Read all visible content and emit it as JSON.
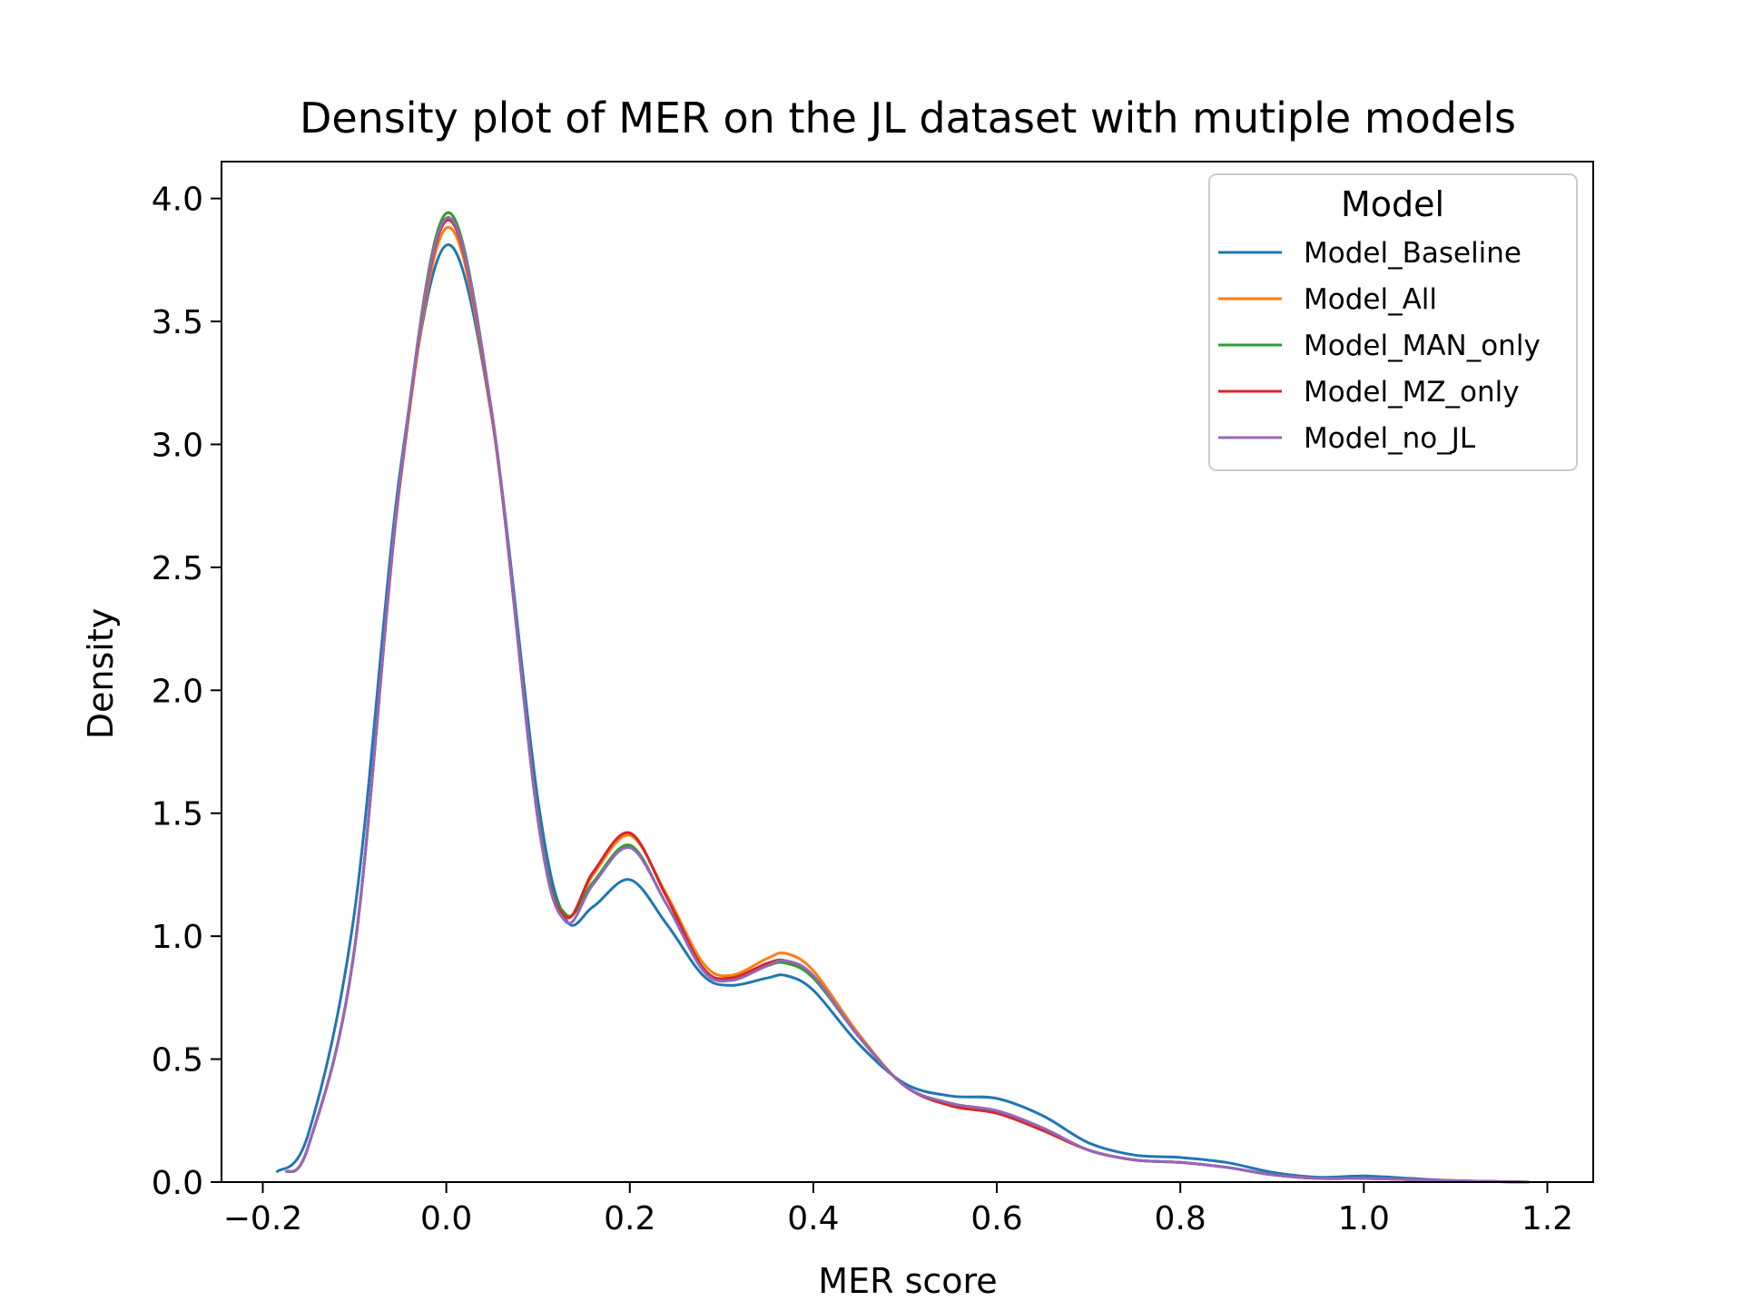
{
  "chart_data": {
    "type": "line",
    "title": "Density plot of MER on the JL dataset with mutiple models",
    "xlabel": "MER score",
    "ylabel": "Density",
    "xlim": [
      -0.245,
      1.25
    ],
    "ylim": [
      0.0,
      4.15
    ],
    "xticks": [
      -0.2,
      0.0,
      0.2,
      0.4,
      0.6,
      0.8,
      1.0,
      1.2
    ],
    "xtick_labels": [
      "−0.2",
      "0.0",
      "0.2",
      "0.4",
      "0.6",
      "0.8",
      "1.0",
      "1.2"
    ],
    "yticks": [
      0.0,
      0.5,
      1.0,
      1.5,
      2.0,
      2.5,
      3.0,
      3.5,
      4.0
    ],
    "ytick_labels": [
      "0.0",
      "0.5",
      "1.0",
      "1.5",
      "2.0",
      "2.5",
      "3.0",
      "3.5",
      "4.0"
    ],
    "grid": false,
    "legend": {
      "title": "Model",
      "placement": "upper right"
    },
    "series": [
      {
        "name": "Model_Baseline",
        "color": "#1f77b4",
        "x": [
          -0.185,
          -0.15,
          -0.1,
          -0.05,
          0.0,
          0.05,
          0.1,
          0.13,
          0.16,
          0.2,
          0.24,
          0.28,
          0.31,
          0.35,
          0.37,
          0.4,
          0.45,
          0.5,
          0.55,
          0.6,
          0.65,
          0.7,
          0.75,
          0.8,
          0.85,
          0.9,
          0.95,
          1.0,
          1.05,
          1.1,
          1.18
        ],
        "y": [
          0.04,
          0.2,
          1.1,
          2.9,
          3.81,
          3.1,
          1.55,
          1.07,
          1.12,
          1.23,
          1.05,
          0.84,
          0.8,
          0.83,
          0.84,
          0.78,
          0.56,
          0.4,
          0.35,
          0.34,
          0.27,
          0.16,
          0.11,
          0.1,
          0.08,
          0.04,
          0.02,
          0.025,
          0.015,
          0.006,
          0.0
        ]
      },
      {
        "name": "Model_All",
        "color": "#ff7f0e",
        "x": [
          -0.175,
          -0.15,
          -0.1,
          -0.05,
          0.0,
          0.05,
          0.1,
          0.13,
          0.16,
          0.2,
          0.24,
          0.28,
          0.31,
          0.35,
          0.37,
          0.4,
          0.45,
          0.5,
          0.55,
          0.6,
          0.65,
          0.7,
          0.75,
          0.8,
          0.85,
          0.9,
          0.95,
          1.0,
          1.05,
          1.1,
          1.18
        ],
        "y": [
          0.04,
          0.15,
          0.95,
          2.85,
          3.88,
          3.1,
          1.48,
          1.08,
          1.25,
          1.41,
          1.17,
          0.89,
          0.84,
          0.91,
          0.93,
          0.86,
          0.6,
          0.39,
          0.32,
          0.29,
          0.22,
          0.13,
          0.09,
          0.08,
          0.06,
          0.03,
          0.015,
          0.015,
          0.01,
          0.005,
          0.0
        ]
      },
      {
        "name": "Model_MAN_only",
        "color": "#2ca02c",
        "x": [
          -0.175,
          -0.15,
          -0.1,
          -0.05,
          0.0,
          0.05,
          0.1,
          0.13,
          0.16,
          0.2,
          0.24,
          0.28,
          0.31,
          0.35,
          0.37,
          0.4,
          0.45,
          0.5,
          0.55,
          0.6,
          0.65,
          0.7,
          0.75,
          0.8,
          0.85,
          0.9,
          0.95,
          1.0,
          1.05,
          1.1,
          1.18
        ],
        "y": [
          0.04,
          0.15,
          0.95,
          2.87,
          3.94,
          3.12,
          1.48,
          1.09,
          1.22,
          1.37,
          1.13,
          0.87,
          0.82,
          0.88,
          0.89,
          0.83,
          0.59,
          0.39,
          0.32,
          0.29,
          0.22,
          0.13,
          0.09,
          0.08,
          0.06,
          0.03,
          0.015,
          0.015,
          0.01,
          0.005,
          0.0
        ]
      },
      {
        "name": "Model_MZ_only",
        "color": "#d62728",
        "x": [
          -0.175,
          -0.15,
          -0.1,
          -0.05,
          0.0,
          0.05,
          0.1,
          0.13,
          0.16,
          0.2,
          0.24,
          0.28,
          0.31,
          0.35,
          0.37,
          0.4,
          0.45,
          0.5,
          0.55,
          0.6,
          0.65,
          0.7,
          0.75,
          0.8,
          0.85,
          0.9,
          0.95,
          1.0,
          1.05,
          1.1,
          1.18
        ],
        "y": [
          0.04,
          0.15,
          0.95,
          2.86,
          3.91,
          3.11,
          1.47,
          1.08,
          1.26,
          1.42,
          1.16,
          0.87,
          0.83,
          0.89,
          0.9,
          0.84,
          0.59,
          0.39,
          0.31,
          0.28,
          0.21,
          0.13,
          0.09,
          0.08,
          0.06,
          0.03,
          0.015,
          0.015,
          0.01,
          0.005,
          0.0
        ]
      },
      {
        "name": "Model_no_JL",
        "color": "#9467bd",
        "x": [
          -0.175,
          -0.15,
          -0.1,
          -0.05,
          0.0,
          0.05,
          0.1,
          0.13,
          0.16,
          0.2,
          0.24,
          0.28,
          0.31,
          0.35,
          0.37,
          0.4,
          0.45,
          0.5,
          0.55,
          0.6,
          0.65,
          0.7,
          0.75,
          0.8,
          0.85,
          0.9,
          0.95,
          1.0,
          1.05,
          1.1,
          1.18
        ],
        "y": [
          0.04,
          0.15,
          0.95,
          2.87,
          3.92,
          3.12,
          1.47,
          1.06,
          1.21,
          1.36,
          1.13,
          0.86,
          0.82,
          0.88,
          0.9,
          0.84,
          0.59,
          0.39,
          0.32,
          0.29,
          0.22,
          0.13,
          0.09,
          0.08,
          0.06,
          0.03,
          0.015,
          0.015,
          0.01,
          0.005,
          0.0
        ]
      }
    ]
  }
}
